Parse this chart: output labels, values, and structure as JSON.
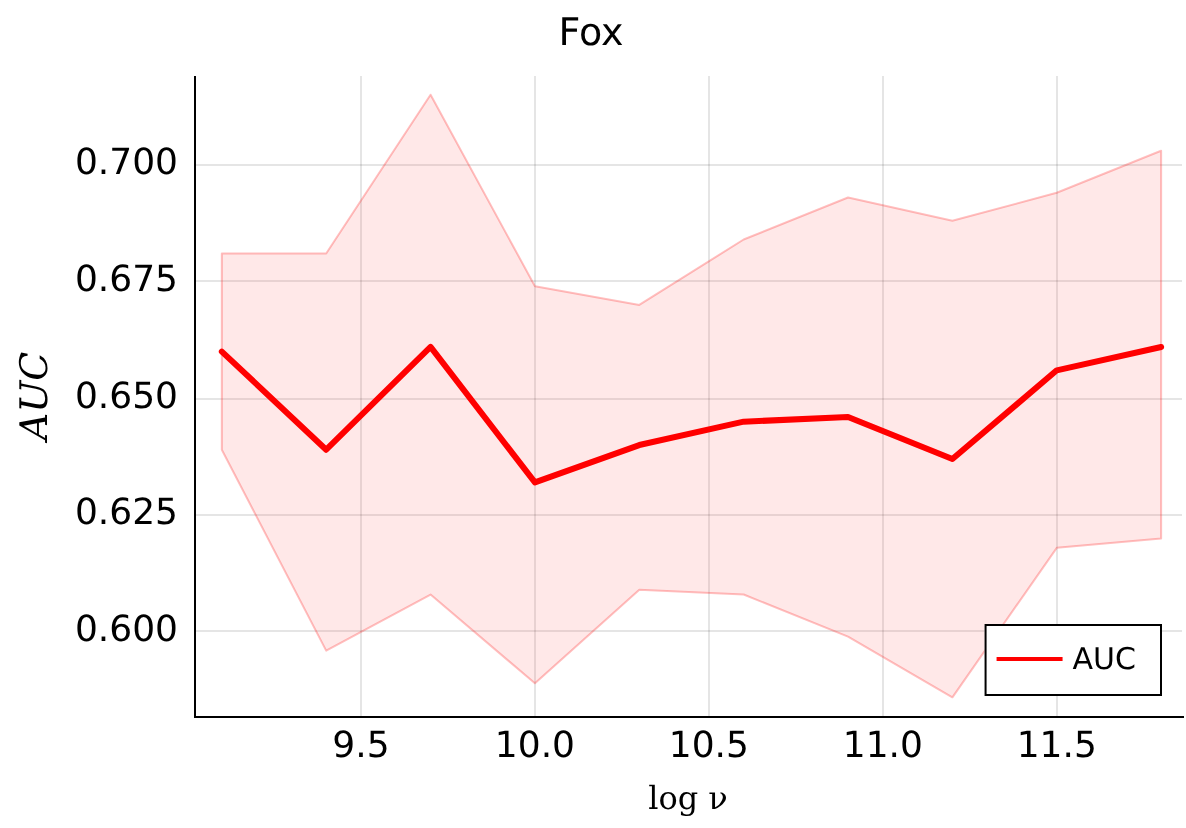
{
  "chart_data": {
    "type": "line",
    "title": "Fox",
    "xlabel": "log ν",
    "ylabel": "AUC",
    "x": [
      9.1,
      9.4,
      9.7,
      10.0,
      10.3,
      10.6,
      10.9,
      11.2,
      11.5,
      11.8
    ],
    "series": [
      {
        "name": "AUC",
        "color": "#ff0000",
        "values": [
          0.66,
          0.639,
          0.661,
          0.632,
          0.64,
          0.645,
          0.646,
          0.637,
          0.656,
          0.661
        ],
        "lower": [
          0.639,
          0.596,
          0.608,
          0.589,
          0.609,
          0.608,
          0.599,
          0.586,
          0.618,
          0.62
        ],
        "upper": [
          0.681,
          0.681,
          0.715,
          0.674,
          0.67,
          0.684,
          0.693,
          0.688,
          0.694,
          0.703
        ]
      }
    ],
    "xlim": [
      9.02,
      11.86
    ],
    "xticks": [
      9.5,
      {
        "value": 10,
        "label": "10.0"
      },
      10.5,
      {
        "value": 11,
        "label": "11.0"
      },
      11.5
    ],
    "ylim": [
      0.582,
      0.719
    ],
    "yticks": [
      {
        "value": 0.6,
        "label": "0.600"
      },
      {
        "value": 0.625,
        "label": "0.625"
      },
      {
        "value": 0.65,
        "label": "0.650"
      },
      {
        "value": 0.675,
        "label": "0.675"
      },
      {
        "value": 0.7,
        "label": "0.700"
      }
    ],
    "grid": true,
    "legend": "bottom right"
  }
}
